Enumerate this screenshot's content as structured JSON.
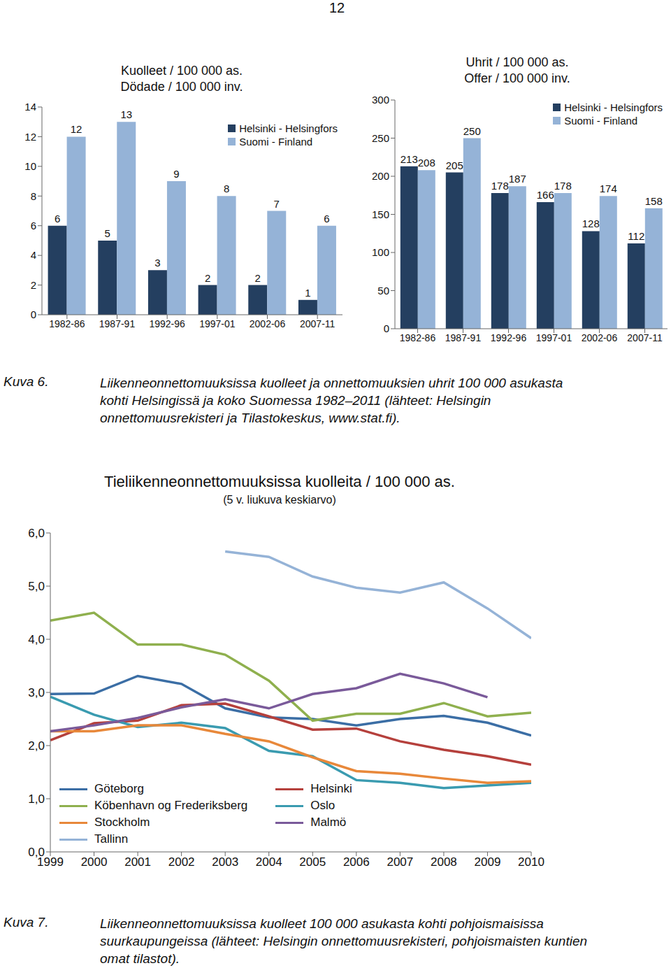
{
  "page_number": "12",
  "chart_data": [
    {
      "type": "bar",
      "title": "Kuolleet / 100 000 as.",
      "subtitle": "Dödade / 100 000 inv.",
      "categories": [
        "1982-86",
        "1987-91",
        "1992-96",
        "1997-01",
        "2002-06",
        "2007-11"
      ],
      "series": [
        {
          "name": "Helsinki - Helsingfors",
          "color": "#243f60",
          "values": [
            6,
            5,
            3,
            2,
            2,
            1
          ]
        },
        {
          "name": "Suomi - Finland",
          "color": "#95b3d7",
          "values": [
            12,
            13,
            9,
            8,
            7,
            6
          ]
        }
      ],
      "ylim": [
        0,
        14
      ],
      "yticks": [
        0,
        2,
        4,
        6,
        8,
        10,
        12,
        14
      ],
      "grid": false,
      "legend": "upper right",
      "data_labels": true
    },
    {
      "type": "bar",
      "title": "Uhrit / 100 000 as.",
      "subtitle": "Offer / 100 000 inv.",
      "categories": [
        "1982-86",
        "1987-91",
        "1992-96",
        "1997-01",
        "2002-06",
        "2007-11"
      ],
      "series": [
        {
          "name": "Helsinki - Helsingfors",
          "color": "#243f60",
          "values": [
            213,
            205,
            178,
            166,
            128,
            112
          ]
        },
        {
          "name": "Suomi - Finland",
          "color": "#95b3d7",
          "values": [
            208,
            250,
            187,
            178,
            174,
            158
          ]
        }
      ],
      "ylim": [
        0,
        300
      ],
      "yticks": [
        0,
        50,
        100,
        150,
        200,
        250,
        300
      ],
      "grid": false,
      "legend": "upper right",
      "data_labels": true
    },
    {
      "type": "line",
      "title": "Tieliikenneonnettomuuksissa kuolleita / 100 000 as.",
      "subtitle": "(5 v. liukuva keskiarvo)",
      "x": [
        1999,
        2000,
        2001,
        2002,
        2003,
        2004,
        2005,
        2006,
        2007,
        2008,
        2009,
        2010
      ],
      "series": [
        {
          "name": "Göteborg",
          "color": "#3b6ea5",
          "values": [
            2.97,
            2.98,
            3.31,
            3.16,
            2.7,
            2.53,
            2.5,
            2.38,
            2.5,
            2.56,
            2.43,
            2.19
          ]
        },
        {
          "name": "Helsinki",
          "color": "#b5403c",
          "values": [
            2.1,
            2.42,
            2.47,
            2.76,
            2.79,
            2.55,
            2.3,
            2.32,
            2.08,
            1.92,
            1.8,
            1.64
          ]
        },
        {
          "name": "Köbenhavn og Frederiksberg",
          "color": "#8fb04e",
          "values": [
            4.35,
            4.5,
            3.9,
            3.9,
            3.71,
            3.22,
            2.47,
            2.6,
            2.6,
            2.8,
            2.55,
            2.62
          ]
        },
        {
          "name": "Oslo",
          "color": "#3a9bb0",
          "values": [
            2.92,
            2.58,
            2.35,
            2.43,
            2.33,
            1.9,
            1.8,
            1.35,
            1.3,
            1.2,
            1.25,
            1.3
          ]
        },
        {
          "name": "Stockholm",
          "color": "#e8883a",
          "values": [
            2.27,
            2.27,
            2.38,
            2.38,
            2.22,
            2.08,
            1.78,
            1.52,
            1.47,
            1.38,
            1.3,
            1.33
          ]
        },
        {
          "name": "Malmö",
          "color": "#7a5a9a",
          "values": [
            2.27,
            2.38,
            2.52,
            2.72,
            2.87,
            2.7,
            2.97,
            3.08,
            3.35,
            3.17,
            2.91,
            null
          ]
        },
        {
          "name": "Tallinn",
          "color": "#95b3d7",
          "values": [
            null,
            null,
            null,
            null,
            5.65,
            5.55,
            5.18,
            4.97,
            4.88,
            5.07,
            4.58,
            4.02
          ]
        }
      ],
      "xlim": [
        1999,
        2010
      ],
      "xticks": [
        1999,
        2000,
        2001,
        2002,
        2003,
        2004,
        2005,
        2006,
        2007,
        2008,
        2009,
        2010
      ],
      "ylim": [
        0,
        6
      ],
      "yticks": [
        {
          "value": 0,
          "label": "0,0"
        },
        {
          "value": 1,
          "label": "1,0"
        },
        {
          "value": 2,
          "label": "2,0"
        },
        {
          "value": 3,
          "label": "3,0"
        },
        {
          "value": 4,
          "label": "4,0"
        },
        {
          "value": 5,
          "label": "5,0"
        },
        {
          "value": 6,
          "label": "6,0"
        }
      ],
      "grid": false,
      "legend": "lower left"
    }
  ],
  "captions": [
    {
      "label": "Kuva 6.",
      "lines": [
        "Liikenneonnettomuuksissa kuolleet ja onnettomuuksien uhrit 100 000 asukasta",
        "kohti Helsingissä ja koko Suomessa 1982–2011 (lähteet: Helsingin",
        "onnettomuusrekisteri ja Tilastokeskus, www.stat.fi)."
      ]
    },
    {
      "label": "Kuva 7.",
      "lines": [
        "Liikenneonnettomuuksissa kuolleet 100 000 asukasta kohti pohjoismaisissa",
        "suurkaupungeissa (lähteet: Helsingin onnettomuusrekisteri, pohjoismaisten kuntien",
        "omat tilastot)."
      ]
    }
  ]
}
